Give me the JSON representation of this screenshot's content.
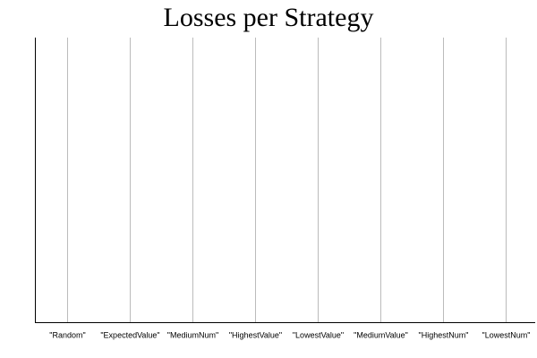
{
  "chart_data": {
    "type": "bar",
    "title": "Losses per Strategy",
    "categories": [
      "\"Random\"",
      "\"ExpectedValue\"",
      "\"MediumNum\"",
      "\"HighestValue\"",
      "\"LowestValue\"",
      "\"MediumValue\"",
      "\"HighestNum\"",
      "\"LowestNum\""
    ],
    "grid": true
  }
}
